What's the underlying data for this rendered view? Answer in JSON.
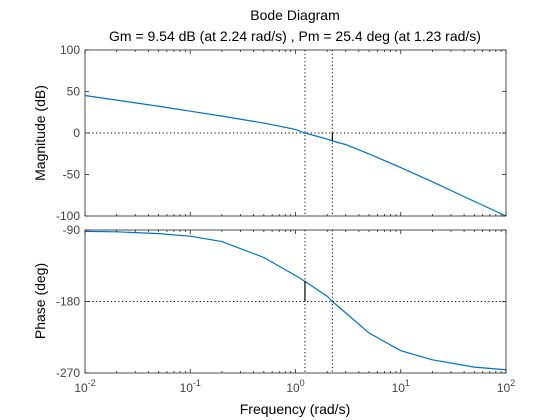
{
  "chart_data": {
    "type": "line",
    "title": "Bode Diagram",
    "subtitle": "Gm = 9.54 dB (at 2.24 rad/s) ,  Pm = 25.4 deg (at 1.23 rad/s)",
    "xlabel": "Frequency  (rad/s)",
    "xscale": "log",
    "xlim": [
      0.01,
      100
    ],
    "xticks": [
      {
        "value": 0.01,
        "base": "10",
        "exp": "-2"
      },
      {
        "value": 0.1,
        "base": "10",
        "exp": "-1"
      },
      {
        "value": 1,
        "base": "10",
        "exp": "0"
      },
      {
        "value": 10,
        "base": "10",
        "exp": "1"
      },
      {
        "value": 100,
        "base": "10",
        "exp": "2"
      }
    ],
    "grid": false,
    "panels": [
      {
        "name": "magnitude",
        "ylabel": "Magnitude (dB)",
        "ylim": [
          -100,
          100
        ],
        "yticks": [
          {
            "value": 100,
            "label": "100"
          },
          {
            "value": 50,
            "label": "50"
          },
          {
            "value": 0,
            "label": "0"
          },
          {
            "value": -50,
            "label": "-50"
          },
          {
            "value": -100,
            "label": "-100"
          }
        ],
        "series": [
          {
            "color": "#0072bd",
            "x": [
              0.01,
              0.02,
              0.05,
              0.1,
              0.2,
              0.5,
              1,
              1.23,
              2,
              2.24,
              3,
              5,
              10,
              20,
              50,
              100
            ],
            "y": [
              45.2,
              39.6,
              32.2,
              26.3,
              20.3,
              12.0,
              4.3,
              0,
              -7.3,
              -9.5,
              -14.0,
              -25.2,
              -41.7,
              -58.8,
              -82.4,
              -100
            ]
          }
        ],
        "reference_line": {
          "y": 0
        },
        "margin_marker": {
          "x": 2.24,
          "from": -9.54,
          "to": 0
        }
      },
      {
        "name": "phase",
        "ylabel": "Phase (deg)",
        "ylim": [
          -270,
          -90
        ],
        "yticks": [
          {
            "value": -90,
            "label": "-90"
          },
          {
            "value": -180,
            "label": "-180"
          },
          {
            "value": -270,
            "label": "-270"
          }
        ],
        "series": [
          {
            "color": "#0072bd",
            "x": [
              0.01,
              0.02,
              0.05,
              0.1,
              0.2,
              0.5,
              1,
              1.23,
              2,
              2.24,
              3,
              5,
              10,
              20,
              50,
              100
            ],
            "y": [
              -91.7,
              -92.3,
              -94.6,
              -97.8,
              -104.5,
              -124.6,
              -147.3,
              -154.6,
              -173.4,
              -180,
              -194.3,
              -219.7,
              -241.9,
              -253.4,
              -262.6,
              -265.9
            ]
          }
        ],
        "reference_line": {
          "y": -180
        },
        "margin_marker": {
          "x": 1.23,
          "from": -180,
          "to": -154.6
        }
      }
    ],
    "crossover_lines": [
      1.23,
      2.24
    ]
  }
}
